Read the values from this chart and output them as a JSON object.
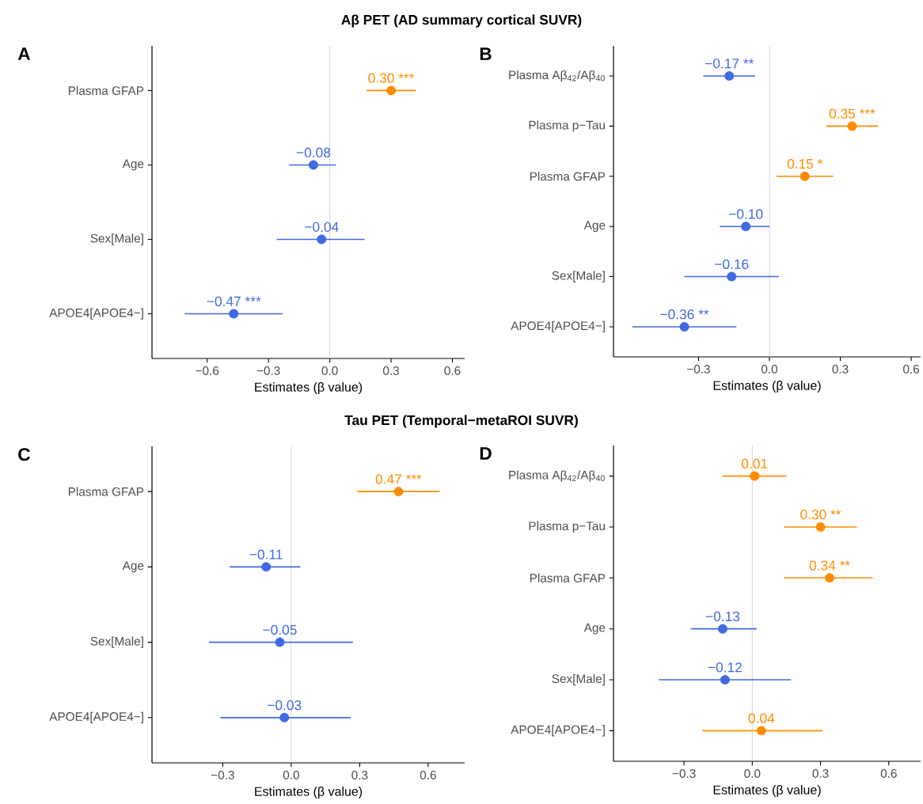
{
  "chart_data": [
    {
      "type": "scatter",
      "orientation": "horizontal",
      "marker": "circle",
      "title": "Aβ PET (AD summary cortical SUVR)",
      "annotations": [
        "A"
      ],
      "xlabel": "Estimates (β value)",
      "categories": [
        "Plasma GFAP",
        "Age",
        "Sex[Male]",
        "APOE4[APOE4−]"
      ],
      "values": [
        0.3,
        -0.08,
        -0.04,
        -0.47
      ],
      "colors": [
        "#ff8c00",
        "#4169e1",
        "#4169e1",
        "#4169e1"
      ],
      "errors": [
        [
          0.18,
          0.42
        ],
        [
          -0.2,
          0.03
        ],
        [
          -0.26,
          0.17
        ],
        [
          -0.71,
          -0.23
        ]
      ],
      "value_labels": [
        "0.30 ***",
        "−0.08",
        "−0.04",
        "−0.47 ***"
      ],
      "xlim": [
        -0.87,
        0.66
      ],
      "xticks": [
        {
          "value": -0.6,
          "label": "−0.6"
        },
        {
          "value": -0.3,
          "label": "−0.3"
        },
        {
          "value": 0,
          "label": "0.0"
        },
        {
          "value": 0.3,
          "label": "0.3"
        },
        {
          "value": 0.6,
          "label": "0.6"
        }
      ],
      "ref_lines": [
        {
          "axis": "x",
          "value": 0,
          "color": "#cccccc"
        }
      ]
    },
    {
      "type": "scatter",
      "orientation": "horizontal",
      "marker": "circle",
      "annotations": [
        "B"
      ],
      "xlabel": "Estimates (β value)",
      "categories": [
        "Plasma Aβ$_{42}$/Aβ$_{40}$",
        "Plasma p−Tau",
        "Plasma GFAP",
        "Age",
        "Sex[Male]",
        "APOE4[APOE4−]"
      ],
      "values": [
        -0.17,
        0.35,
        0.15,
        -0.1,
        -0.16,
        -0.36
      ],
      "colors": [
        "#4169e1",
        "#ff8c00",
        "#ff8c00",
        "#4169e1",
        "#4169e1",
        "#4169e1"
      ],
      "errors": [
        [
          -0.28,
          -0.06
        ],
        [
          0.24,
          0.46
        ],
        [
          0.03,
          0.27
        ],
        [
          -0.21,
          0.0
        ],
        [
          -0.36,
          0.04
        ],
        [
          -0.58,
          -0.14
        ]
      ],
      "value_labels": [
        "−0.17 **",
        "0.35 ***",
        "0.15 *",
        "−0.10",
        "−0.16",
        "−0.36 **"
      ],
      "xlim": [
        -0.66,
        0.64
      ],
      "xticks": [
        {
          "value": -0.3,
          "label": "−0.3"
        },
        {
          "value": 0,
          "label": "0.0"
        },
        {
          "value": 0.3,
          "label": "0.3"
        },
        {
          "value": 0.6,
          "label": "0.6"
        }
      ],
      "ref_lines": [
        {
          "axis": "x",
          "value": 0,
          "color": "#cccccc"
        }
      ]
    },
    {
      "type": "scatter",
      "orientation": "horizontal",
      "marker": "circle",
      "title": "Tau PET (Temporal−metaROI SUVR)",
      "annotations": [
        "C"
      ],
      "xlabel": "Estimates (β value)",
      "categories": [
        "Plasma GFAP",
        "Age",
        "Sex[Male]",
        "APOE4[APOE4−]"
      ],
      "values": [
        0.47,
        -0.11,
        -0.05,
        -0.03
      ],
      "colors": [
        "#ff8c00",
        "#4169e1",
        "#4169e1",
        "#4169e1"
      ],
      "errors": [
        [
          0.29,
          0.65
        ],
        [
          -0.27,
          0.04
        ],
        [
          -0.36,
          0.27
        ],
        [
          -0.31,
          0.26
        ]
      ],
      "value_labels": [
        "0.47 ***",
        "−0.11",
        "−0.05",
        "−0.03"
      ],
      "xlim": [
        -0.61,
        0.76
      ],
      "xticks": [
        {
          "value": -0.3,
          "label": "−0.3"
        },
        {
          "value": 0,
          "label": "0.0"
        },
        {
          "value": 0.3,
          "label": "0.3"
        },
        {
          "value": 0.6,
          "label": "0.6"
        }
      ],
      "ref_lines": [
        {
          "axis": "x",
          "value": 0,
          "color": "#cccccc"
        }
      ]
    },
    {
      "type": "scatter",
      "orientation": "horizontal",
      "marker": "circle",
      "annotations": [
        "D"
      ],
      "xlabel": "Estimates (β value)",
      "categories": [
        "Plasma Aβ$_{42}$/Aβ$_{40}$",
        "Plasma p−Tau",
        "Plasma GFAP",
        "Age",
        "Sex[Male]",
        "APOE4[APOE4−]"
      ],
      "values": [
        0.01,
        0.3,
        0.34,
        -0.13,
        -0.12,
        0.04
      ],
      "colors": [
        "#ff8c00",
        "#ff8c00",
        "#ff8c00",
        "#4169e1",
        "#4169e1",
        "#ff8c00"
      ],
      "errors": [
        [
          -0.13,
          0.15
        ],
        [
          0.14,
          0.46
        ],
        [
          0.14,
          0.53
        ],
        [
          -0.27,
          0.02
        ],
        [
          -0.41,
          0.17
        ],
        [
          -0.22,
          0.31
        ]
      ],
      "value_labels": [
        "0.01",
        "0.30 **",
        "0.34 **",
        "−0.13",
        "−0.12",
        "0.04"
      ],
      "xlim": [
        -0.61,
        0.74
      ],
      "xticks": [
        {
          "value": -0.3,
          "label": "−0.3"
        },
        {
          "value": 0,
          "label": "0.0"
        },
        {
          "value": 0.3,
          "label": "0.3"
        },
        {
          "value": 0.6,
          "label": "0.6"
        }
      ],
      "ref_lines": [
        {
          "axis": "x",
          "value": 0,
          "color": "#cccccc"
        }
      ]
    }
  ]
}
